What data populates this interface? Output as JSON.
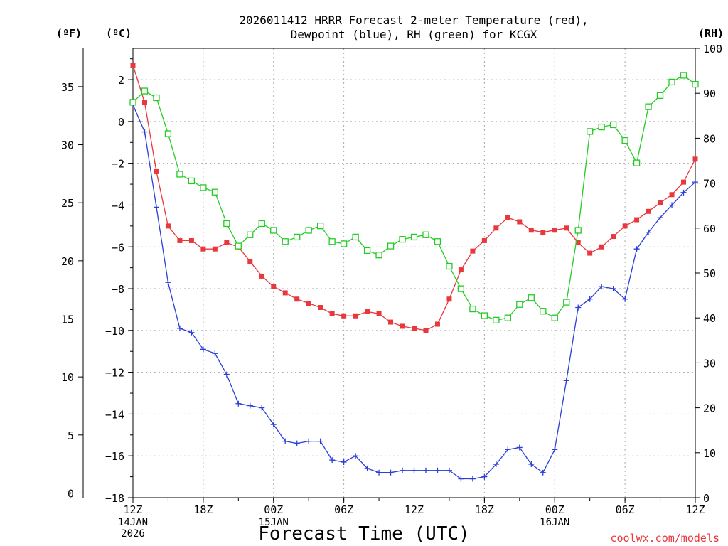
{
  "chart_data": {
    "type": "line",
    "title_lines": [
      "2026011412 HRRR Forecast 2-meter Temperature (red),",
      "Dewpoint (blue), RH (green) for KCGX"
    ],
    "xlabel": "Forecast Time (UTC)",
    "unit_labels": {
      "fahrenheit": "(ºF)",
      "celsius": "(ºC)",
      "rh": "(RH)"
    },
    "x_ticks": [
      "12Z",
      "18Z",
      "00Z",
      "06Z",
      "12Z",
      "18Z",
      "00Z",
      "06Z",
      "12Z"
    ],
    "date_labels": [
      {
        "tick": 0,
        "lines": [
          "14JAN",
          "2026"
        ]
      },
      {
        "tick": 2,
        "lines": [
          "15JAN"
        ]
      },
      {
        "tick": 6,
        "lines": [
          "16JAN"
        ]
      }
    ],
    "credit": "coolwx.com/models",
    "x_range_hours": [
      0,
      48
    ],
    "celsius_axis": {
      "min": -18,
      "max": 3.5,
      "ticks": [
        2,
        0,
        -2,
        -4,
        -6,
        -8,
        -10,
        -12,
        -14,
        -16,
        -18
      ]
    },
    "fahrenheit_axis": {
      "ticks": [
        35,
        30,
        25,
        20,
        15,
        10,
        5,
        0
      ]
    },
    "rh_axis": {
      "min": 0,
      "max": 100,
      "ticks": [
        100,
        90,
        80,
        70,
        60,
        50,
        40,
        30,
        20,
        10,
        0
      ]
    },
    "grid": true,
    "colors": {
      "temperature": "#e8383d",
      "dewpoint": "#2a3fd8",
      "rh": "#22cc22"
    },
    "series": [
      {
        "key": "temperature",
        "axis": "celsius",
        "marker": "filled-square",
        "values": [
          2.7,
          0.9,
          -2.4,
          -5.0,
          -5.7,
          -5.7,
          -6.1,
          -6.1,
          -5.8,
          -6.0,
          -6.7,
          -7.4,
          -7.9,
          -8.2,
          -8.5,
          -8.7,
          -8.9,
          -9.2,
          -9.3,
          -9.3,
          -9.1,
          -9.2,
          -9.6,
          -9.8,
          -9.9,
          -10.0,
          -9.7,
          -8.5,
          -7.1,
          -6.2,
          -5.7,
          -5.1,
          -4.6,
          -4.8,
          -5.2,
          -5.3,
          -5.2,
          -5.1,
          -5.8,
          -6.3,
          -6.0,
          -5.5,
          -5.0,
          -4.7,
          -4.3,
          -3.9,
          -3.5,
          -2.9,
          -1.8
        ]
      },
      {
        "key": "dewpoint",
        "axis": "celsius",
        "marker": "plus",
        "values": [
          0.8,
          -0.5,
          -4.1,
          -7.7,
          -9.9,
          -10.1,
          -10.9,
          -11.1,
          -12.1,
          -13.5,
          -13.6,
          -13.7,
          -14.5,
          -15.3,
          -15.4,
          -15.3,
          -15.3,
          -16.2,
          -16.3,
          -16.0,
          -16.6,
          -16.8,
          -16.8,
          -16.7,
          -16.7,
          -16.7,
          -16.7,
          -16.7,
          -17.1,
          -17.1,
          -17.0,
          -16.4,
          -15.7,
          -15.6,
          -16.4,
          -16.8,
          -15.7,
          -12.4,
          -8.9,
          -8.5,
          -7.9,
          -8.0,
          -8.5,
          -6.1,
          -5.3,
          -4.6,
          -4.0,
          -3.4,
          -2.9
        ]
      },
      {
        "key": "rh",
        "axis": "rh",
        "marker": "open-square",
        "values": [
          88,
          90.5,
          89,
          81,
          72,
          70.5,
          69,
          68,
          61,
          56,
          58.5,
          61,
          59.5,
          57,
          58,
          59.5,
          60.5,
          57,
          56.5,
          58,
          55,
          54,
          56,
          57.5,
          58,
          58.5,
          57,
          51.5,
          46.5,
          42,
          40.5,
          39.5,
          40,
          43,
          44.5,
          41.5,
          40,
          43.5,
          59.5,
          81.5,
          82.5,
          83,
          79.5,
          74.5,
          87,
          89.5,
          92.5,
          94,
          92
        ]
      }
    ]
  }
}
